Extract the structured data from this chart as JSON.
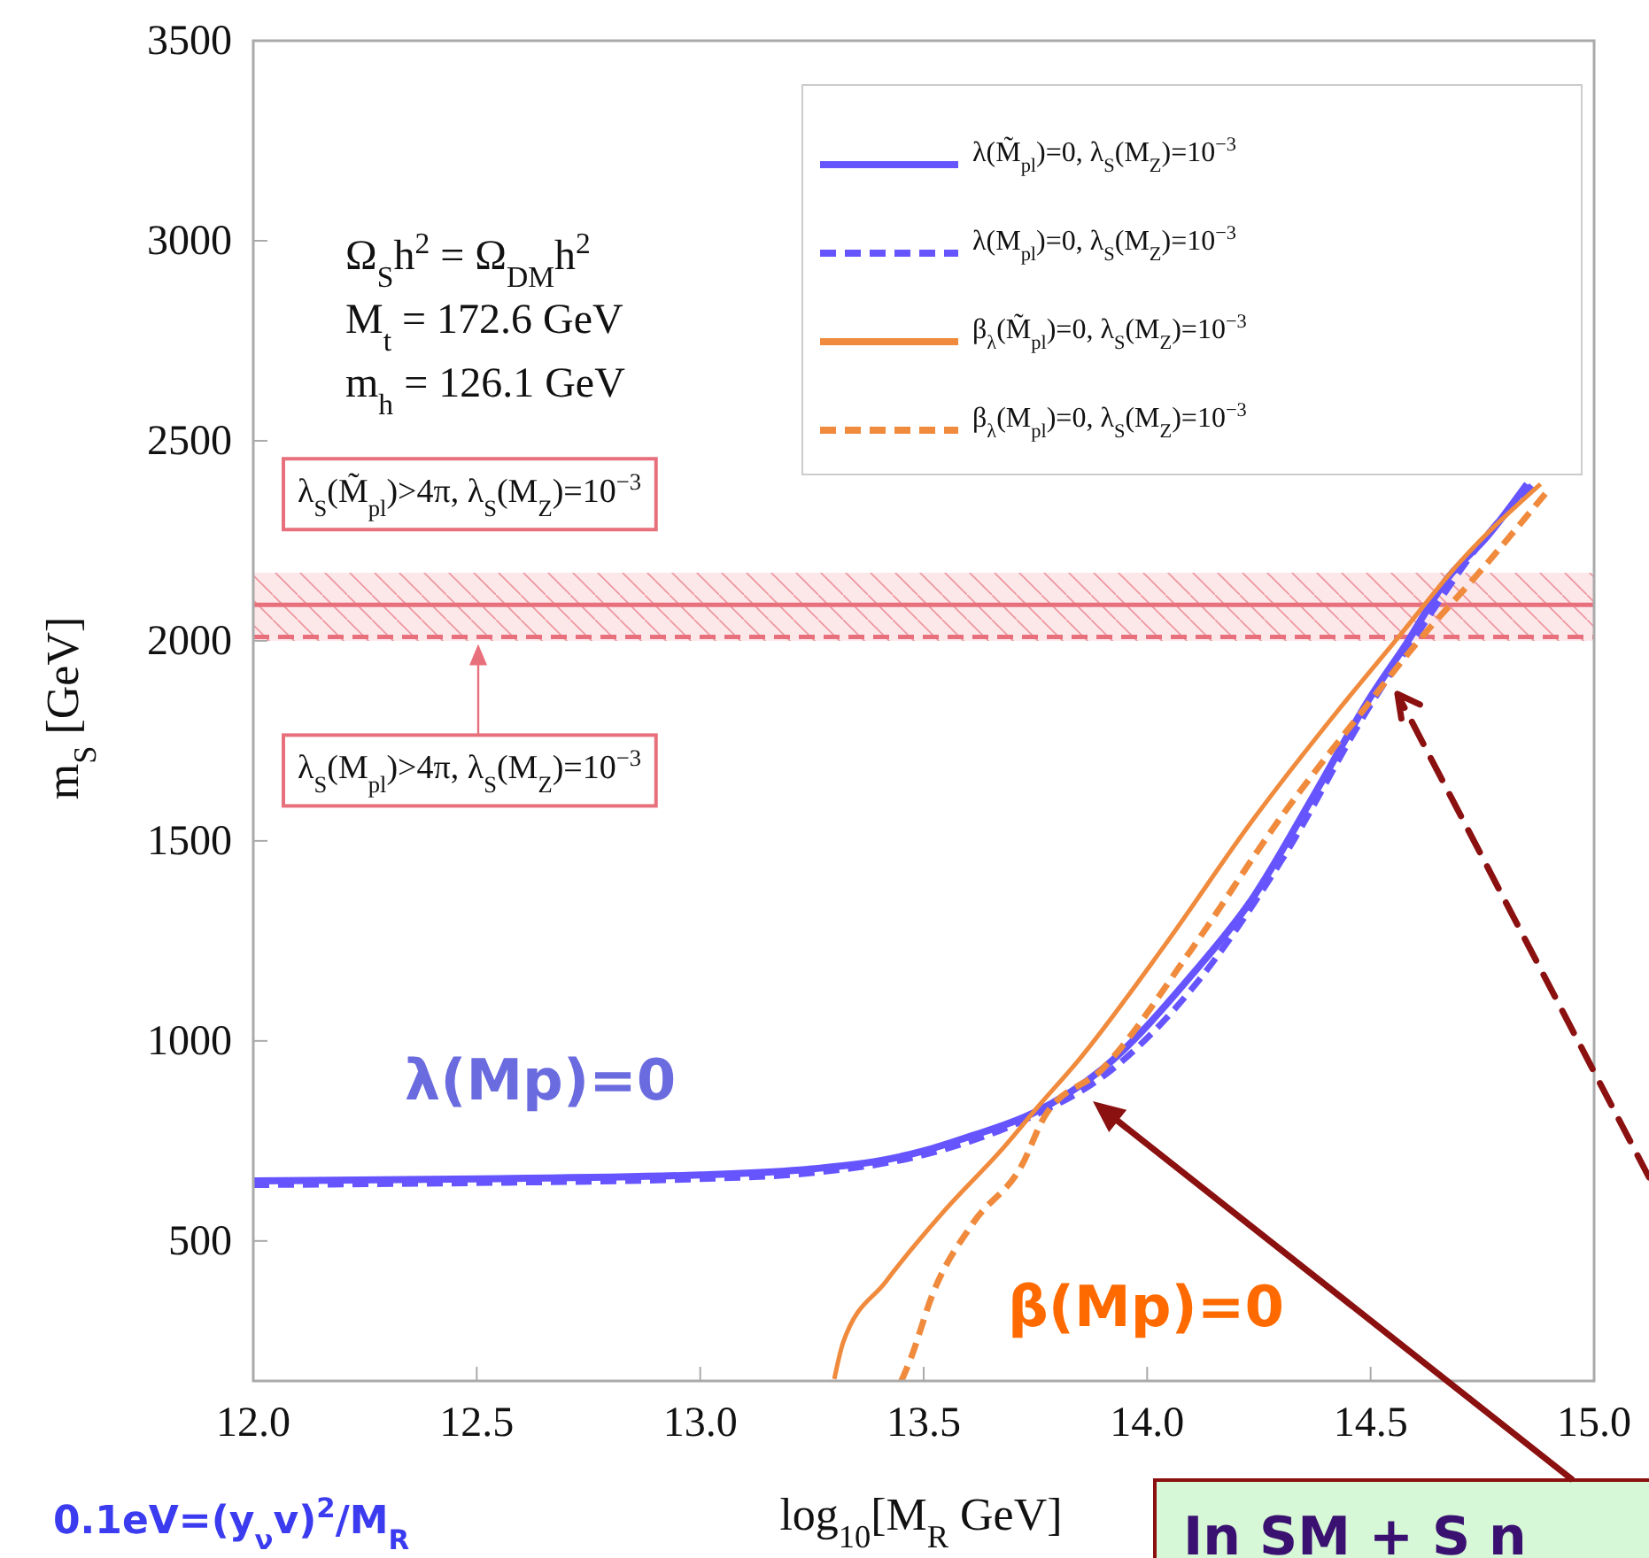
{
  "chart_data": {
    "type": "line",
    "xlabel": "log$_{10}$[M$_{R}$ GeV]",
    "ylabel": "m$_{S}$ [GeV]",
    "xlim": [
      12.0,
      15.0
    ],
    "xticks": [
      {
        "value": 12.0,
        "label": "12.0"
      },
      {
        "value": 12.5,
        "label": "12.5"
      },
      {
        "value": 13.0,
        "label": "13.0"
      },
      {
        "value": 13.5,
        "label": "13.5"
      },
      {
        "value": 14.0,
        "label": "14.0"
      },
      {
        "value": 14.5,
        "label": "14.5"
      },
      {
        "value": 15.0,
        "label": "15.0"
      }
    ],
    "ylim": [
      150,
      3500
    ],
    "yticks": [
      500,
      1000,
      1500,
      2000,
      2500,
      3000,
      3500
    ],
    "grid": false,
    "legend": "top right",
    "marker": "none",
    "series": [
      {
        "name": "λ(M̃$_{pl}$)=0, λ$_{S}$(M$_{Z}$)=10$^{−3}$",
        "color": "#6655ff",
        "line_style": "solid",
        "x": [
          12.0,
          12.5,
          13.0,
          13.25,
          13.4,
          13.5,
          13.6,
          13.744,
          13.9,
          14.1,
          14.235,
          14.37,
          14.5,
          14.58,
          14.67,
          14.76,
          14.85
        ],
        "values": [
          650,
          655,
          665,
          680,
          700,
          725,
          760,
          819,
          930,
          1165,
          1355,
          1608,
          1860,
          1993,
          2153,
          2260,
          2392
        ]
      },
      {
        "name": "λ(M$_{pl}$)=0, λ$_{S}$(M$_{Z}$)=10$^{−3}$",
        "color": "#6655ff",
        "line_style": "dashed",
        "x": [
          12.0,
          12.5,
          13.0,
          13.25,
          13.5,
          13.75,
          13.9,
          14.1,
          14.3,
          14.5,
          14.6,
          14.75,
          14.87
        ],
        "values": [
          640,
          645,
          655,
          670,
          715,
          815,
          910,
          1130,
          1450,
          1840,
          2010,
          2250,
          2400
        ]
      },
      {
        "name": "β$_{λ}$(M̃$_{pl}$)=0, λ$_{S}$(M$_{Z}$)=10$^{−3}$",
        "color": "#f08a3c",
        "line_style": "solid",
        "x": [
          13.3,
          13.32,
          13.415,
          13.546,
          13.68,
          13.76,
          13.84,
          14.04,
          14.235,
          14.43,
          14.56,
          14.7,
          14.88
        ],
        "values": [
          155,
          247,
          398,
          575,
          735,
          841,
          943,
          1240,
          1550,
          1830,
          2006,
          2197,
          2392
        ]
      },
      {
        "name": "β$_{λ}$(M$_{pl}$)=0, λ$_{S}$(M$_{Z}$)=10$^{−3}$",
        "color": "#f08a3c",
        "line_style": "dashed",
        "x": [
          13.45,
          13.47,
          13.52,
          13.61,
          13.72,
          13.77,
          13.9,
          14.1,
          14.3,
          14.5,
          14.6,
          14.75,
          14.9
        ],
        "values": [
          150,
          203,
          367,
          544,
          690,
          810,
          930,
          1230,
          1560,
          1850,
          1990,
          2180,
          2380
        ]
      }
    ],
    "ref_lines": [
      {
        "axis": "y",
        "value": 2090,
        "color": "#e8707c",
        "line_style": "solid"
      },
      {
        "axis": "y",
        "value": 2010,
        "color": "#e8707c",
        "line_style": "dashed"
      }
    ],
    "bands": [
      {
        "axis": "y",
        "from": 2000,
        "to": 2170,
        "color": "#f4a0a8"
      }
    ],
    "annotations": [
      "Ω$_{S}$h$^{2}$ = Ω$_{DM}$h$^{2}$",
      "M$_{t}$ = 172.6 GeV",
      "m$_{h}$ = 126.1 GeV",
      "λ$_{S}$(M̃$_{pl}$)>4π, λ$_{S}$(M$_{Z}$)=10$^{−3}$",
      "λ$_{S}$(M$_{pl}$)>4π, λ$_{S}$(M$_{Z}$)=10$^{−3}$",
      "λ(Mp)=0",
      "β(Mp)=0",
      "0.1eV=(y$_{ν}$v)$^{2}$/M$_{R}$",
      "In SM + S n"
    ]
  }
}
